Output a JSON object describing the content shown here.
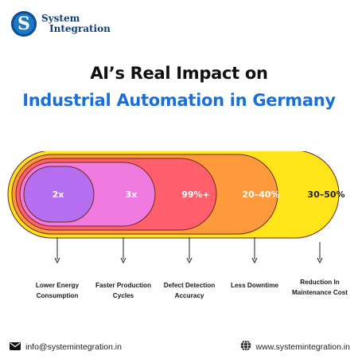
{
  "brand": {
    "logo_letter": "S",
    "name_line1": "System",
    "name_line2": "Integration",
    "color": "#0f3f7a"
  },
  "title": {
    "line1": "AI’s Real Impact on",
    "line2": "Industrial Automation in Germany",
    "accent_color": "#1b6fd8"
  },
  "chart_data": {
    "type": "other",
    "series": [
      {
        "value": "2x",
        "label": [
          "Lower Energy",
          "Consumption"
        ],
        "color": "#b66ef0"
      },
      {
        "value": "3x",
        "label": [
          "Faster Production",
          "Cycles"
        ],
        "color": "#f07ae0"
      },
      {
        "value": "99%+",
        "label": [
          "Defect Detection",
          "Accuracy"
        ],
        "color": "#ff5f6a"
      },
      {
        "value": "20–40%",
        "label": [
          "Less Downtime"
        ],
        "color": "#ff9a3c"
      },
      {
        "value": "30–50%",
        "label": [
          "Reduction In",
          "Maintenance Cost"
        ],
        "color": "#ffe41a"
      }
    ]
  },
  "footer": {
    "email": "info@systemintegration.in",
    "website": "www.systemintegration.in",
    "email_icon": "mail-icon",
    "web_icon": "globe-icon"
  }
}
